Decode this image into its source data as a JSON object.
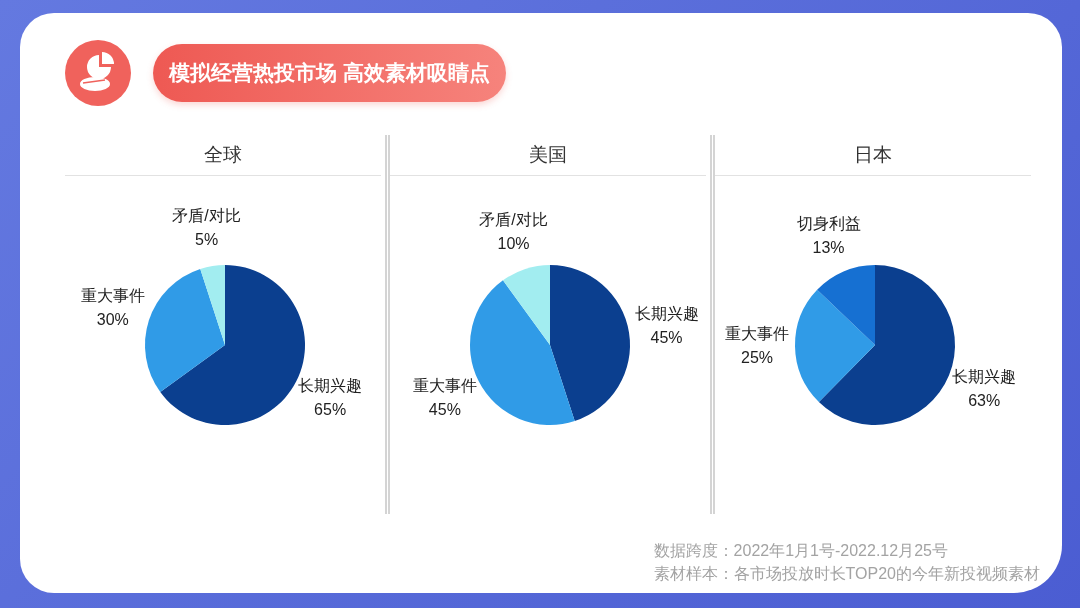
{
  "chart_data": [
    {
      "type": "other",
      "title": "模拟经营热投市场 高效素材吸睛点"
    },
    {
      "type": "pie",
      "title": "全球",
      "categories": [
        "长期兴趣",
        "重大事件",
        "矛盾/对比"
      ],
      "values": [
        65,
        30,
        5
      ],
      "colors": [
        "#0b3f8f",
        "#309be7",
        "#a2edf0"
      ],
      "value_labels": [
        "65%",
        "30%",
        "5%"
      ]
    },
    {
      "type": "pie",
      "title": "美国",
      "categories": [
        "长期兴趣",
        "重大事件",
        "矛盾/对比"
      ],
      "values": [
        45,
        45,
        10
      ],
      "colors": [
        "#0b3f8f",
        "#309be7",
        "#a2edf0"
      ],
      "value_labels": [
        "45%",
        "45%",
        "10%"
      ]
    },
    {
      "type": "pie",
      "title": "日本",
      "categories": [
        "长期兴趣",
        "重大事件",
        "切身利益"
      ],
      "values": [
        63,
        25,
        13
      ],
      "colors": [
        "#0b3f8f",
        "#309be7",
        "#1670d2"
      ],
      "value_labels": [
        "63%",
        "25%",
        "13%"
      ]
    },
    {
      "type": "other",
      "annotations": [
        "数据跨度：2022年1月1号-2022.12月25号",
        "素材样本：各市场投放时长TOP20的今年新投视频素材"
      ]
    }
  ]
}
